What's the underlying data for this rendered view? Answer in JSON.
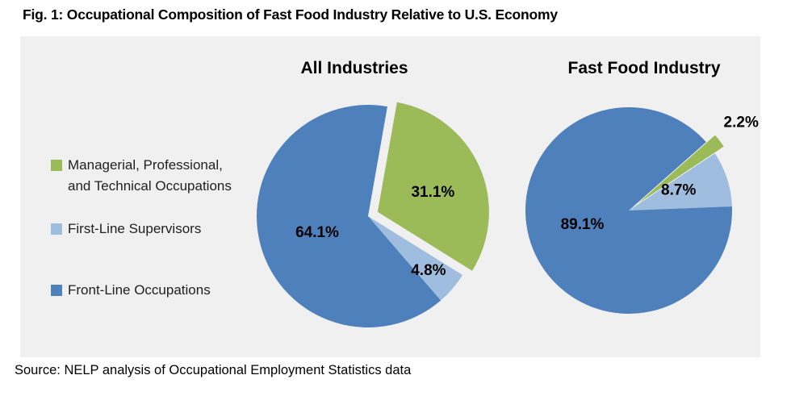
{
  "figure": {
    "title": "Fig. 1: Occupational Composition of Fast Food Industry Relative to U.S. Economy",
    "source": "Source: NELP analysis of Occupational Employment Statistics data"
  },
  "legend": {
    "position": "left",
    "items": [
      {
        "label": "Managerial, Professional, and Technical Occupations",
        "color": "#9bbb59"
      },
      {
        "label": "First-Line Supervisors",
        "color": "#9fbddf"
      },
      {
        "label": "Front-Line Occupations",
        "color": "#4e80bc"
      }
    ]
  },
  "chart_data": [
    {
      "type": "pie",
      "title": "All Industries",
      "labels": [
        "Managerial, Professional, and Technical Occupations",
        "First-Line Supervisors",
        "Front-Line Occupations"
      ],
      "values": [
        31.1,
        4.8,
        64.1
      ],
      "value_labels": [
        "31.1%",
        "4.8%",
        "64.1%"
      ],
      "colors": [
        "#9bbb59",
        "#9fbddf",
        "#4e80bc"
      ],
      "start_angle_deg": 10,
      "exploded_slice": 0,
      "legend_position": "left"
    },
    {
      "type": "pie",
      "title": "Fast Food Industry",
      "labels": [
        "Managerial, Professional, and Technical Occupations",
        "First-Line Supervisors",
        "Front-Line Occupations"
      ],
      "values": [
        2.2,
        8.7,
        89.1
      ],
      "value_labels": [
        "2.2%",
        "8.7%",
        "89.1%"
      ],
      "colors": [
        "#9bbb59",
        "#9fbddf",
        "#4e80bc"
      ],
      "start_angle_deg": 48.5,
      "exploded_slice": 0,
      "legend_position": "left"
    }
  ]
}
